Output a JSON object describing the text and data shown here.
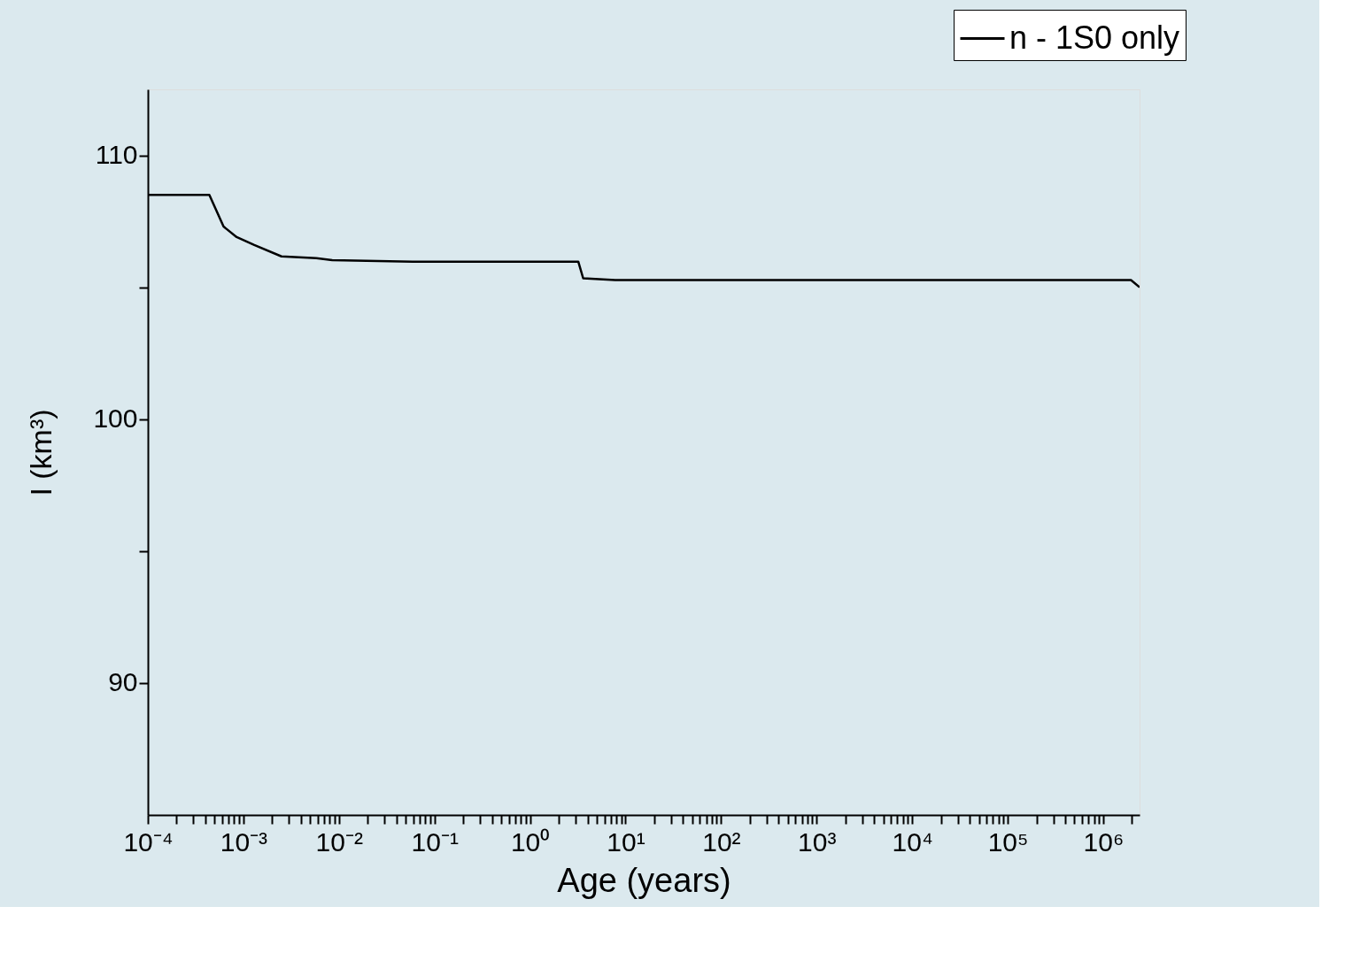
{
  "chart_data": {
    "type": "line",
    "xlabel": "Age (years)",
    "ylabel": "I (km³)",
    "log": "x",
    "xlim": [
      0.0001,
      2400000
    ],
    "ylim": [
      85,
      112.5
    ],
    "xticks": [
      {
        "value": 0.0001,
        "label": "10⁻⁴"
      },
      {
        "value": 0.001,
        "label": "10⁻³"
      },
      {
        "value": 0.01,
        "label": "10⁻²"
      },
      {
        "value": 0.1,
        "label": "10⁻¹"
      },
      {
        "value": 1,
        "label": "10⁰"
      },
      {
        "value": 10,
        "label": "10¹"
      },
      {
        "value": 100,
        "label": "10²"
      },
      {
        "value": 1000,
        "label": "10³"
      },
      {
        "value": 10000,
        "label": "10⁴"
      },
      {
        "value": 100000,
        "label": "10⁵"
      },
      {
        "value": 1000000,
        "label": "10⁶"
      }
    ],
    "yticks": [
      90,
      {
        "value": 95,
        "label": null
      },
      100,
      {
        "value": 105,
        "label": null
      },
      110
    ],
    "legend": "top right",
    "grid": false,
    "series": [
      {
        "name": "n - 1S0 only",
        "color": "#000000",
        "x": [
          0.0001,
          0.00044,
          0.00062,
          0.00085,
          0.0013,
          0.0025,
          0.0058,
          0.0085,
          0.059,
          3.2,
          3.6,
          7.8,
          1950000,
          2400000
        ],
        "values": [
          108.5,
          108.5,
          107.3,
          106.9,
          106.6,
          106.17,
          106.1,
          106.03,
          105.97,
          105.97,
          105.34,
          105.27,
          105.27,
          105.0
        ]
      }
    ]
  }
}
